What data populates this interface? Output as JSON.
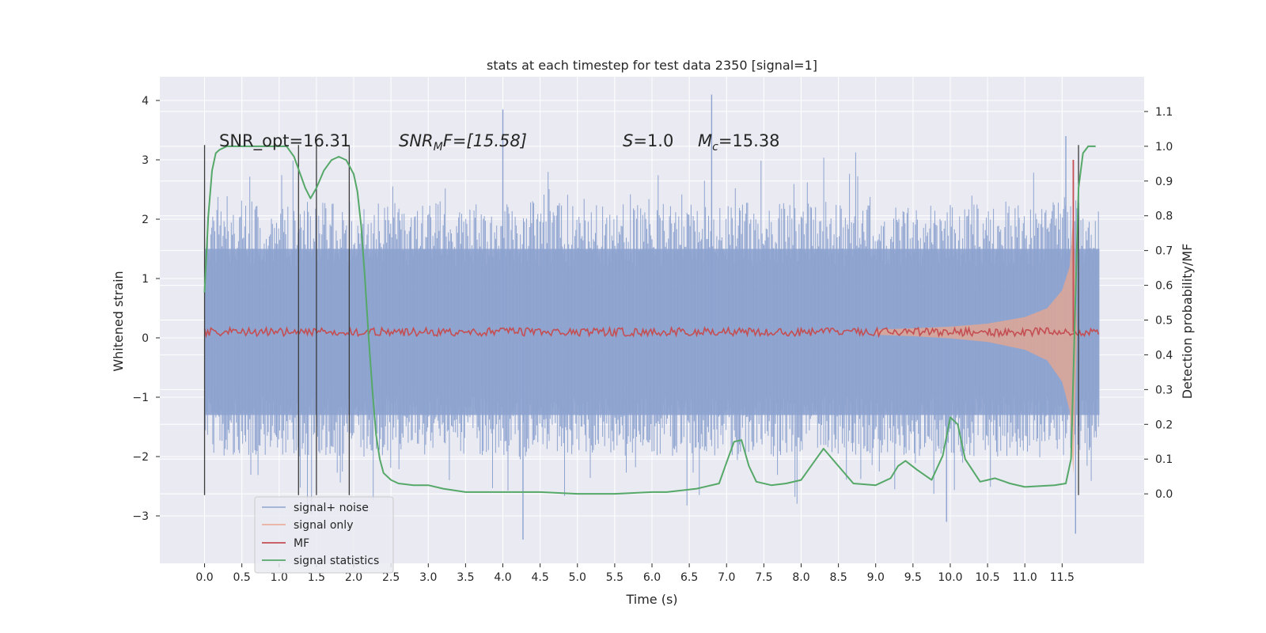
{
  "chart_data": {
    "type": "line",
    "title": "stats at each timestep for test data 2350 [signal=1]",
    "xlabel": "Time (s)",
    "ylabel": "Whitened strain",
    "ylabel_right": "Detection probability/MF",
    "xlim": [
      -0.6,
      12.6
    ],
    "ylim": [
      -3.8,
      4.4
    ],
    "ylim_right": [
      -0.2,
      1.2
    ],
    "x_ticks": [
      "0.0",
      "0.5",
      "1.0",
      "1.5",
      "2.0",
      "2.5",
      "3.0",
      "3.5",
      "4.0",
      "4.5",
      "5.0",
      "5.5",
      "6.0",
      "6.5",
      "7.0",
      "7.5",
      "8.0",
      "8.5",
      "9.0",
      "9.5",
      "10.0",
      "10.5",
      "11.0",
      "11.5"
    ],
    "y_ticks": [
      "−3",
      "−2",
      "−1",
      "0",
      "1",
      "2",
      "3",
      "4"
    ],
    "y_ticks_right": [
      "0.0",
      "0.1",
      "0.2",
      "0.3",
      "0.4",
      "0.5",
      "0.6",
      "0.7",
      "0.8",
      "0.9",
      "1.0",
      "1.1"
    ],
    "grid": true,
    "legend_position": "lower-left",
    "annotations": {
      "snr_opt": "SNR_opt=16.31",
      "snr_mf_base": "SNR",
      "snr_mf_sub": "M",
      "snr_mf_rest": "F=[15.58]",
      "s_sym": "S",
      "s_val": "=1.0",
      "mc_sym": "M",
      "mc_sub": "c",
      "mc_val": "=15.38"
    },
    "vertical_markers": [
      0.0,
      1.26,
      1.5,
      1.94,
      11.72
    ],
    "series": [
      {
        "name": "signal+ noise",
        "color": "#8da3cf",
        "axis": "left",
        "envelope": {
          "x": [
            0.0,
            12.0
          ],
          "upper_typical": 1.5,
          "lower_typical": -1.3,
          "upper_peak": 4.1,
          "lower_peak": -3.4
        }
      },
      {
        "name": "signal only",
        "color": "#eaa58e",
        "axis": "left",
        "envelope": {
          "x": [
            9.0,
            9.5,
            10.0,
            10.5,
            11.0,
            11.3,
            11.5,
            11.6,
            11.65,
            11.7
          ],
          "amplitude": [
            0.04,
            0.06,
            0.09,
            0.14,
            0.25,
            0.4,
            0.7,
            1.1,
            2.0,
            0.0
          ]
        }
      },
      {
        "name": "MF",
        "color": "#c44e52",
        "axis": "left",
        "level": 0.1,
        "spike": {
          "x": 11.65,
          "y": 3.0
        }
      },
      {
        "name": "signal statistics",
        "color": "#55a868",
        "axis": "right",
        "x": [
          0.0,
          0.05,
          0.1,
          0.15,
          0.2,
          0.3,
          0.5,
          0.8,
          1.0,
          1.1,
          1.2,
          1.3,
          1.35,
          1.42,
          1.5,
          1.6,
          1.7,
          1.8,
          1.9,
          2.0,
          2.05,
          2.1,
          2.15,
          2.2,
          2.25,
          2.3,
          2.35,
          2.4,
          2.5,
          2.6,
          2.8,
          3.0,
          3.2,
          3.5,
          4.0,
          4.5,
          5.0,
          5.5,
          6.0,
          6.2,
          6.6,
          6.9,
          7.0,
          7.1,
          7.2,
          7.3,
          7.4,
          7.6,
          7.8,
          8.0,
          8.2,
          8.3,
          8.5,
          8.7,
          9.0,
          9.2,
          9.3,
          9.4,
          9.55,
          9.75,
          9.9,
          10.0,
          10.1,
          10.2,
          10.4,
          10.5,
          10.6,
          10.8,
          11.0,
          11.4,
          11.55,
          11.62,
          11.67,
          11.72,
          11.78,
          11.85,
          11.95
        ],
        "values": [
          0.58,
          0.8,
          0.93,
          0.98,
          0.99,
          1.0,
          1.0,
          1.0,
          1.0,
          1.0,
          0.97,
          0.91,
          0.88,
          0.85,
          0.88,
          0.93,
          0.96,
          0.97,
          0.96,
          0.92,
          0.87,
          0.77,
          0.62,
          0.45,
          0.3,
          0.17,
          0.1,
          0.06,
          0.04,
          0.03,
          0.025,
          0.025,
          0.015,
          0.005,
          0.005,
          0.005,
          0.0,
          0.0,
          0.005,
          0.005,
          0.015,
          0.03,
          0.09,
          0.15,
          0.155,
          0.08,
          0.035,
          0.025,
          0.03,
          0.04,
          0.1,
          0.13,
          0.08,
          0.03,
          0.025,
          0.045,
          0.08,
          0.095,
          0.07,
          0.04,
          0.11,
          0.22,
          0.2,
          0.1,
          0.035,
          0.04,
          0.045,
          0.03,
          0.02,
          0.025,
          0.03,
          0.1,
          0.5,
          0.88,
          0.98,
          1.0,
          1.0
        ]
      }
    ]
  }
}
